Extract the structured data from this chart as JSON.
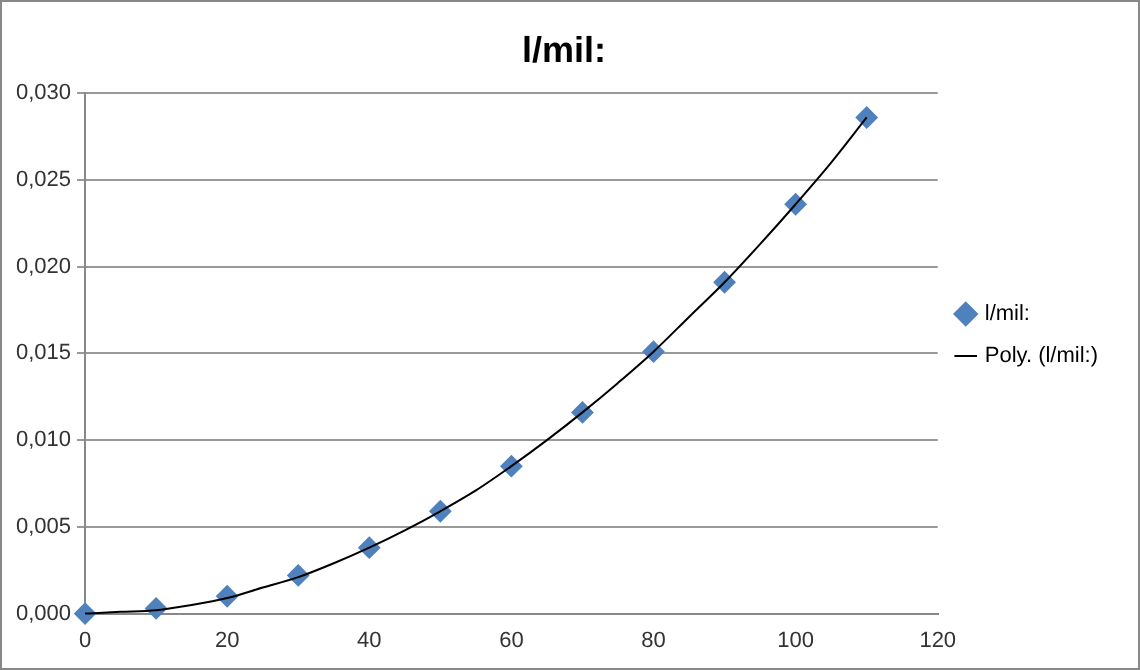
{
  "chart_data": {
    "type": "scatter",
    "title": "l/mil:",
    "series": [
      {
        "name": "l/mil:",
        "type": "scatter",
        "color": "#4f81bd",
        "marker": "diamond",
        "x": [
          0,
          10,
          20,
          30,
          40,
          50,
          60,
          70,
          80,
          90,
          100,
          110
        ],
        "values": [
          0,
          0.0003,
          0.001,
          0.0022,
          0.0038,
          0.0059,
          0.0085,
          0.0116,
          0.0151,
          0.0191,
          0.0236,
          0.0286
        ]
      },
      {
        "name": "Poly. (l/mil:)",
        "type": "line",
        "color": "#000000",
        "marker": "none",
        "line_style": "solid",
        "x": [
          0,
          5,
          10,
          15,
          20,
          25,
          30,
          35,
          40,
          45,
          50,
          55,
          60,
          65,
          70,
          75,
          80,
          85,
          90,
          95,
          100,
          105,
          110
        ],
        "values": [
          0,
          0.0001,
          0.0002,
          0.0005,
          0.0009,
          0.0015,
          0.0021,
          0.0029,
          0.0038,
          0.0048,
          0.0059,
          0.0071,
          0.0085,
          0.01,
          0.0116,
          0.0133,
          0.0151,
          0.0171,
          0.0191,
          0.0213,
          0.0236,
          0.026,
          0.0286
        ]
      }
    ],
    "xlim": [
      0,
      120
    ],
    "xticks": [
      0,
      20,
      40,
      60,
      80,
      100,
      120
    ],
    "ylim": [
      0,
      0.03
    ],
    "yticks": [
      {
        "value": 0,
        "label": "0,000"
      },
      {
        "value": 0.005,
        "label": "0,005"
      },
      {
        "value": 0.01,
        "label": "0,010"
      },
      {
        "value": 0.015,
        "label": "0,015"
      },
      {
        "value": 0.02,
        "label": "0,020"
      },
      {
        "value": 0.025,
        "label": "0,025"
      },
      {
        "value": 0.03,
        "label": "0,030"
      }
    ],
    "grid": "y",
    "legend": "right"
  }
}
